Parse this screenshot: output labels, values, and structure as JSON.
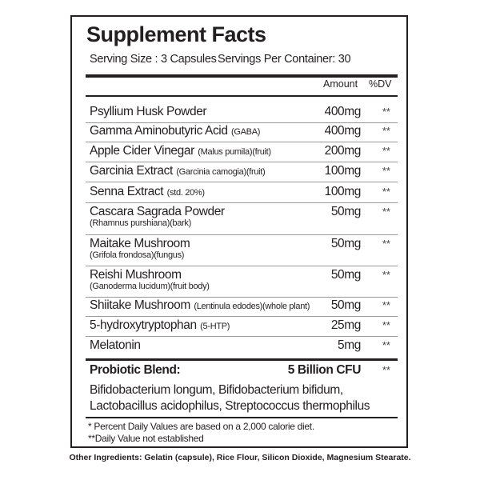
{
  "title": "Supplement Facts",
  "serving_size": "Serving Size : 3 Capsules",
  "servings_per_container": "Servings Per Container: 30",
  "header": {
    "amount": "Amount",
    "dv": "%DV"
  },
  "ingredients": [
    {
      "name": "Psyllium Husk Powder",
      "note": "",
      "amount": "400mg",
      "dv": "**"
    },
    {
      "name": "Gamma Aminobutyric Acid",
      "note": "(GABA)",
      "amount": "400mg",
      "dv": "**"
    },
    {
      "name": "Apple Cider Vinegar",
      "note": "(Malus pumila)(fruit)",
      "amount": "200mg",
      "dv": "**"
    },
    {
      "name": "Garcinia Extract",
      "note": "(Garcinia camogia)(fruit)",
      "amount": "100mg",
      "dv": "**"
    },
    {
      "name": "Senna Extract",
      "note": "(std. 20%)",
      "amount": "100mg",
      "dv": "**"
    },
    {
      "name": "Cascara Sagrada Powder",
      "note": "(Rhamnus purshiana)(bark)",
      "amount": "50mg",
      "dv": "**"
    },
    {
      "name": "Maitake Mushroom",
      "note": "(Grifola frondosa)(fungus)",
      "amount": "50mg",
      "dv": "**"
    },
    {
      "name": "Reishi Mushroom",
      "note": "(Ganoderma lucidum)(fruit body)",
      "amount": "50mg",
      "dv": "**"
    },
    {
      "name": "Shiitake Mushroom",
      "note": "(Lentinula edodes)(whole plant)",
      "amount": "50mg",
      "dv": "**"
    },
    {
      "name": "5-hydroxytryptophan",
      "note": "(5-HTP)",
      "amount": "25mg",
      "dv": "**"
    },
    {
      "name": "Melatonin",
      "note": "",
      "amount": "5mg",
      "dv": "**"
    }
  ],
  "probiotic": {
    "name": "Probiotic Blend:",
    "amount": "5 Billion CFU",
    "dv": "**",
    "line1": "Bifidobacterium longum, Bifidobacterium bifidum,",
    "line2": "Lactobacillus acidophilus, Streptococcus thermophilus"
  },
  "footnotes": [
    "*  Percent Daily Values are based on a 2,000 calorie diet.",
    "**Daily Value not established"
  ],
  "other_ingredients": "Other Ingredients: Gelatin (capsule), Rice Flour, Silicon Dioxide, Magnesium Stearate."
}
